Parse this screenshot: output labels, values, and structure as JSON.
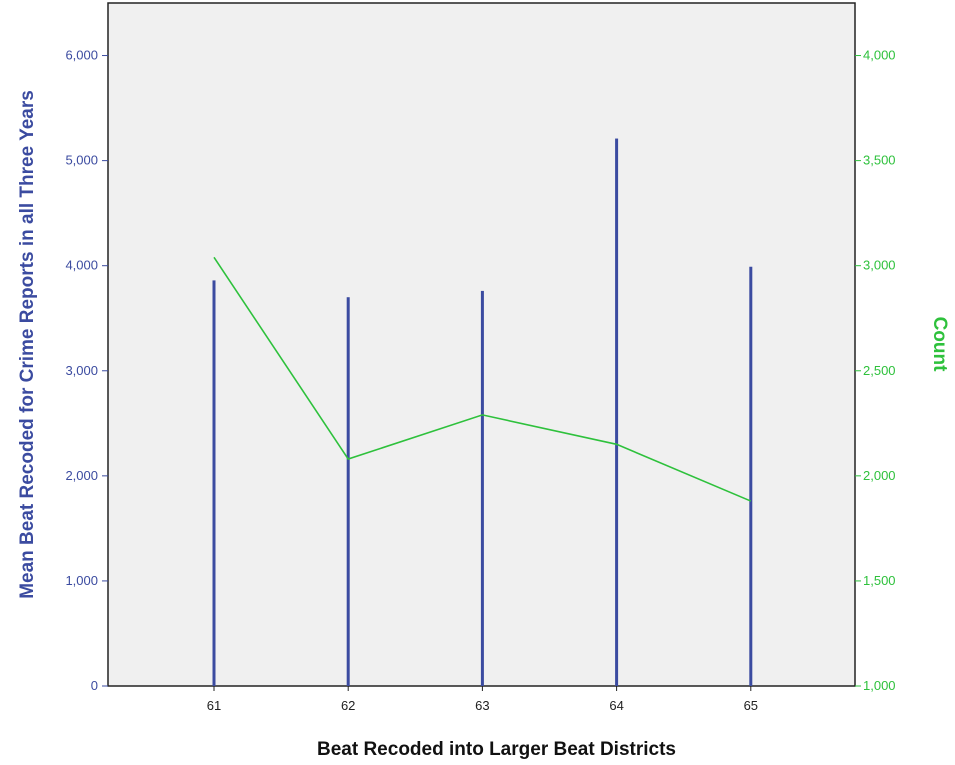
{
  "chart_data": {
    "type": "bar",
    "title": "",
    "xlabel": "Beat Recoded into Larger Beat Districts",
    "categories": [
      "61",
      "62",
      "63",
      "64",
      "65"
    ],
    "y_left": {
      "label": "Mean Beat Recoded for Crime Reports in all Three Years",
      "range": [
        0,
        6500
      ],
      "ticks": [
        0,
        1000,
        2000,
        3000,
        4000,
        5000,
        6000
      ],
      "tick_labels": [
        "0",
        "1,000",
        "2,000",
        "3,000",
        "4,000",
        "5,000",
        "6,000"
      ]
    },
    "y_right": {
      "label": "Count",
      "range": [
        1000,
        4250
      ],
      "ticks": [
        1000,
        1500,
        2000,
        2500,
        3000,
        3500,
        4000
      ],
      "tick_labels": [
        "1,000",
        "1,500",
        "2,000",
        "2,500",
        "3,000",
        "3,500",
        "4,000"
      ]
    },
    "series": [
      {
        "type": "bar",
        "axis": "left",
        "color": "#3b4ba0",
        "values": [
          3860,
          3700,
          3760,
          5210,
          3990
        ]
      },
      {
        "type": "line",
        "axis": "right",
        "color": "#2ec13c",
        "values": [
          3040,
          2080,
          2290,
          2150,
          1880
        ]
      }
    ],
    "legend": "none",
    "grid": false,
    "background": "#f0f0f0"
  }
}
